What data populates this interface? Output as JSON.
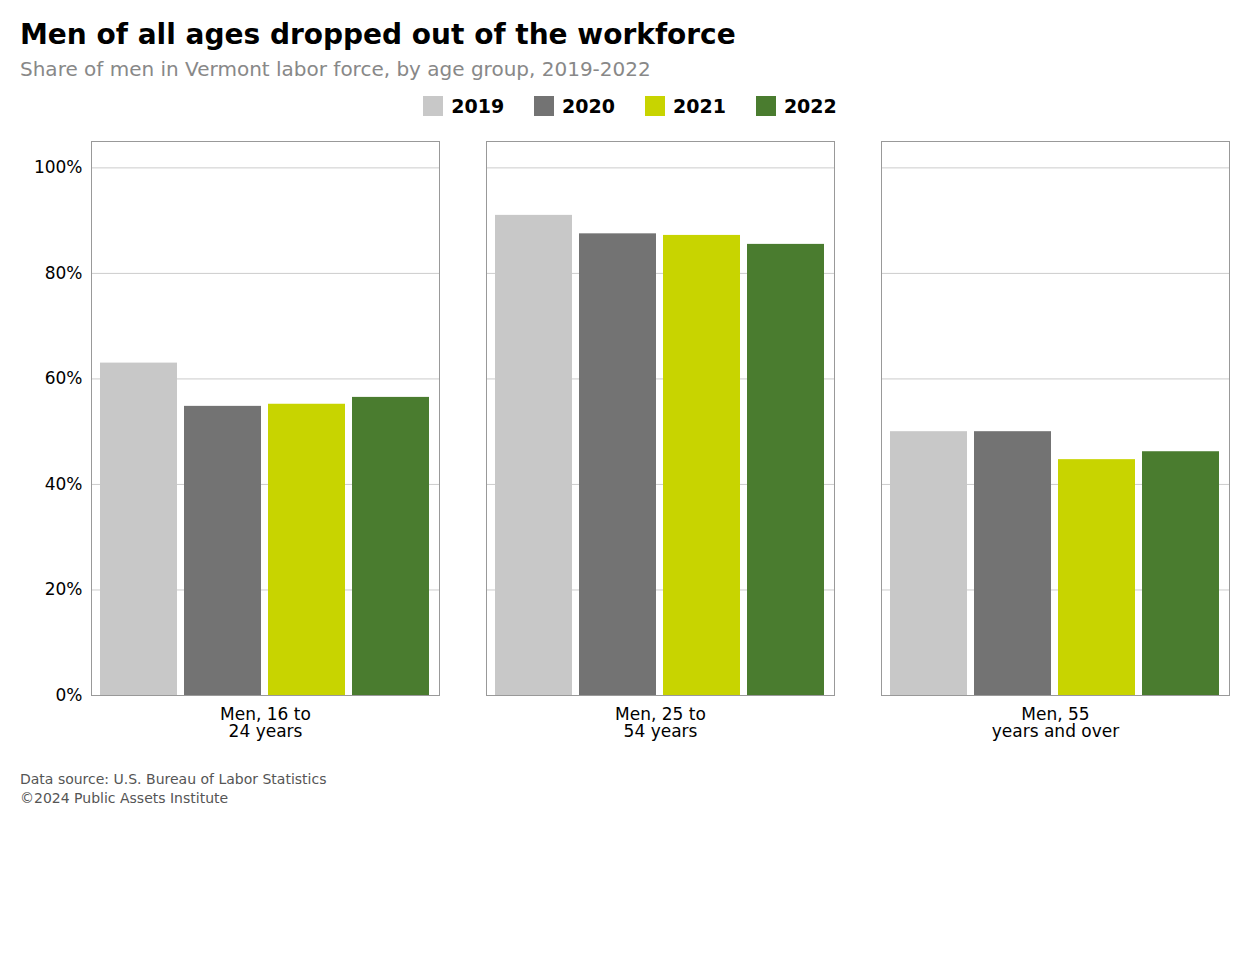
{
  "chart_data": {
    "type": "bar",
    "title": "Men of all ages dropped out of the workforce",
    "subtitle": "Share of men in Vermont labor force, by age group, 2019-2022",
    "categories": [
      "Men, 16 to\n24 years",
      "Men, 25 to\n54 years",
      "Men, 55\nyears and over"
    ],
    "series": [
      {
        "name": "2019",
        "color": "#c8c8c8",
        "values": [
          0.63,
          0.91,
          0.5
        ]
      },
      {
        "name": "2020",
        "color": "#737373",
        "values": [
          0.548,
          0.875,
          0.5
        ]
      },
      {
        "name": "2021",
        "color": "#c8d400",
        "values": [
          0.552,
          0.872,
          0.447
        ]
      },
      {
        "name": "2022",
        "color": "#4a7c2f",
        "values": [
          0.565,
          0.855,
          0.462
        ]
      }
    ],
    "ylim": [
      0,
      1.05
    ],
    "yticks": [
      {
        "value": 0,
        "label": "0%"
      },
      {
        "value": 0.2,
        "label": "20%"
      },
      {
        "value": 0.4,
        "label": "40%"
      },
      {
        "value": 0.6,
        "label": "60%"
      },
      {
        "value": 0.8,
        "label": "80%"
      },
      {
        "value": 1.0,
        "label": "100%"
      }
    ],
    "grid": true,
    "legend": "top",
    "annotations": [
      "Data source: U.S. Bureau of Labor Statistics",
      "©2024 Public Assets Institute"
    ]
  }
}
